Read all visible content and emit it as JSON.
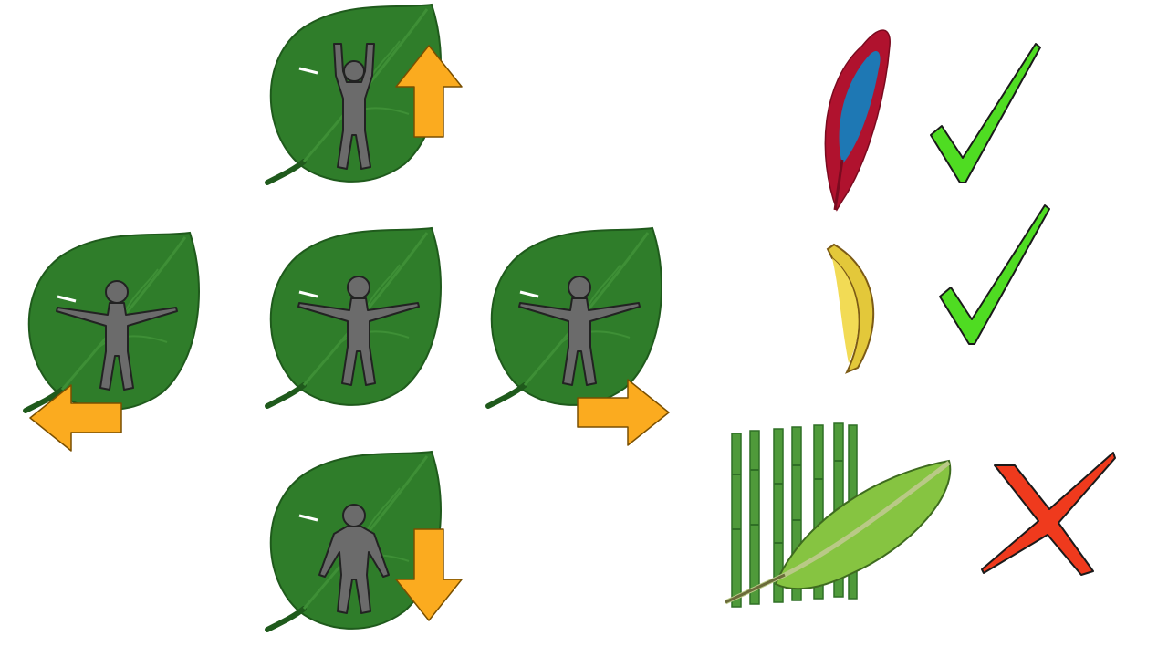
{
  "slide": {
    "background": "#ffffff",
    "leaf_tiles": [
      {
        "id": "up",
        "figure_pose": "arms-raised",
        "arrow": "up",
        "icons": [
          "leaf-icon",
          "person-arms-up-icon",
          "arrow-up-icon"
        ]
      },
      {
        "id": "left",
        "figure_pose": "arms-out",
        "arrow": "left",
        "icons": [
          "leaf-icon",
          "person-arms-out-icon",
          "arrow-left-icon"
        ]
      },
      {
        "id": "center",
        "figure_pose": "arms-out",
        "arrow": "none",
        "icons": [
          "leaf-icon",
          "person-arms-out-icon"
        ]
      },
      {
        "id": "right",
        "figure_pose": "arms-out",
        "arrow": "right",
        "icons": [
          "leaf-icon",
          "person-arms-out-icon",
          "arrow-right-icon"
        ]
      },
      {
        "id": "down",
        "figure_pose": "arms-down",
        "arrow": "down",
        "icons": [
          "leaf-icon",
          "person-arms-down-icon",
          "arrow-down-icon"
        ]
      }
    ],
    "item_checks": [
      {
        "item": "feather-icon",
        "mark": "check-icon"
      },
      {
        "item": "banana-icon",
        "mark": "check-icon"
      },
      {
        "item": "bamboo-and-palm-leaf-icon",
        "mark": "cross-icon"
      }
    ],
    "colors": {
      "leaf": "#2f7d2a",
      "leaf_dark": "#1f5a1c",
      "figure": "#6b6b6b",
      "arrow": "#fbab1f",
      "check": "#4fdc22",
      "cross": "#ef3a1d",
      "feather_outer": "#b0122e",
      "feather_inner": "#1e78b4",
      "banana": "#e3c83a",
      "bamboo": "#4f9a3a",
      "palm": "#86c441"
    }
  }
}
